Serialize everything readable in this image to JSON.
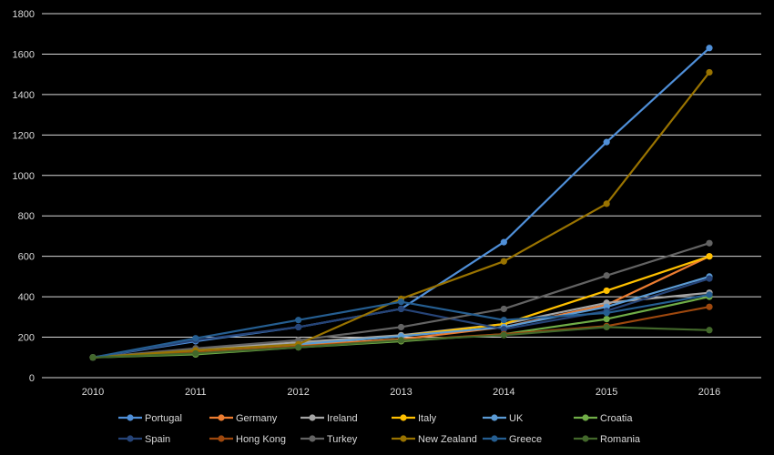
{
  "chart_data": {
    "type": "line",
    "title": "",
    "xlabel": "",
    "ylabel": "",
    "x": [
      "2010",
      "2011",
      "2012",
      "2013",
      "2014",
      "2015",
      "2016"
    ],
    "ylim": [
      0,
      1800
    ],
    "yticks": [
      0,
      200,
      400,
      600,
      800,
      1000,
      1200,
      1400,
      1600,
      1800
    ],
    "grid": "horizontal",
    "legend_position": "bottom",
    "series": [
      {
        "name": "Portugal",
        "color": "#4f8fd8",
        "values": [
          100,
          180,
          250,
          340,
          670,
          1165,
          1630
        ]
      },
      {
        "name": "Germany",
        "color": "#ed7d31",
        "values": [
          100,
          130,
          160,
          190,
          250,
          360,
          600
        ]
      },
      {
        "name": "Ireland",
        "color": "#a5a5a5",
        "values": [
          100,
          140,
          175,
          210,
          265,
          370,
          420
        ]
      },
      {
        "name": "Italy",
        "color": "#ffc000",
        "values": [
          100,
          130,
          165,
          205,
          265,
          430,
          600
        ]
      },
      {
        "name": "UK",
        "color": "#5b9bd5",
        "values": [
          100,
          135,
          165,
          205,
          250,
          350,
          500
        ]
      },
      {
        "name": "Croatia",
        "color": "#70ad47",
        "values": [
          100,
          115,
          150,
          180,
          215,
          290,
          400
        ]
      },
      {
        "name": "Spain",
        "color": "#264478",
        "values": [
          100,
          185,
          250,
          340,
          240,
          330,
          490
        ]
      },
      {
        "name": "Hong Kong",
        "color": "#9e480e",
        "values": [
          100,
          125,
          155,
          185,
          215,
          255,
          350
        ]
      },
      {
        "name": "Turkey",
        "color": "#636363",
        "values": [
          100,
          145,
          185,
          250,
          340,
          505,
          665
        ]
      },
      {
        "name": "New Zealand",
        "color": "#997300",
        "values": [
          100,
          135,
          165,
          390,
          575,
          860,
          1510
        ]
      },
      {
        "name": "Greece",
        "color": "#255e91",
        "values": [
          100,
          195,
          285,
          375,
          285,
          320,
          410
        ]
      },
      {
        "name": "Romania",
        "color": "#43682b",
        "values": [
          100,
          120,
          150,
          185,
          210,
          250,
          235
        ]
      }
    ]
  }
}
